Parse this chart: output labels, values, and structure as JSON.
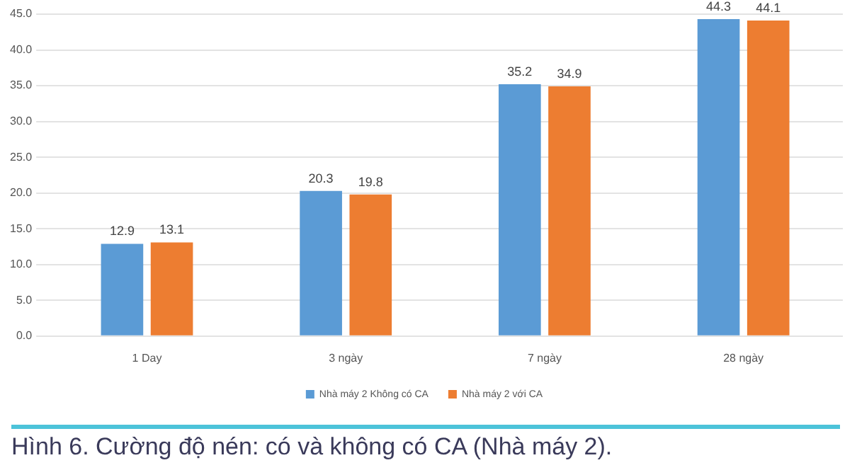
{
  "chart_data": {
    "type": "bar",
    "categories": [
      "1 Day",
      "3 ngày",
      "7 ngày",
      "28 ngày"
    ],
    "series": [
      {
        "name": "Nhà máy 2 Không có CA",
        "color": "#5b9bd5",
        "values": [
          12.9,
          20.3,
          35.2,
          44.3
        ]
      },
      {
        "name": "Nhà máy 2 với CA",
        "color": "#ed7d31",
        "values": [
          13.1,
          19.8,
          34.9,
          44.1
        ]
      }
    ],
    "ylim": [
      0,
      45
    ],
    "yticks": [
      {
        "value": 0,
        "label": "0.0"
      },
      {
        "value": 5,
        "label": "5.0"
      },
      {
        "value": 10,
        "label": "10.0"
      },
      {
        "value": 15,
        "label": "15.0"
      },
      {
        "value": 20,
        "label": "20.0"
      },
      {
        "value": 25,
        "label": "25.0"
      },
      {
        "value": 30,
        "label": "30.0"
      },
      {
        "value": 35,
        "label": "35.0"
      },
      {
        "value": 40,
        "label": "40.0"
      },
      {
        "value": 45,
        "label": "45.0"
      }
    ],
    "grid": "y",
    "legend": "bottom",
    "data_labels": true,
    "annotations": [
      "Hình 6. Cường độ nén: có và không có CA (Nhà máy 2)."
    ]
  }
}
